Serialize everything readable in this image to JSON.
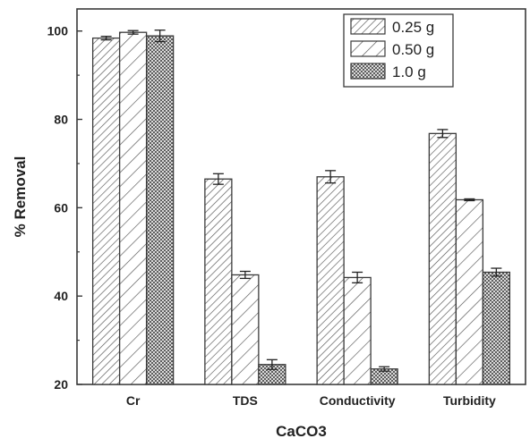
{
  "chart_data": {
    "type": "bar",
    "xlabel": "CaCO3",
    "ylabel": "% Removal",
    "ylim": [
      20,
      105
    ],
    "yticks": [
      20,
      40,
      60,
      80,
      100
    ],
    "categories": [
      "Cr",
      "TDS",
      "Conductivity",
      "Turbidity"
    ],
    "series": [
      {
        "name": "0.25 g",
        "pattern": "hatch-diagonal-dense",
        "values": [
          98.4,
          66.5,
          67.0,
          76.8
        ],
        "errors": [
          0.4,
          1.2,
          1.4,
          0.9
        ]
      },
      {
        "name": "0.50 g",
        "pattern": "hatch-diagonal-wide",
        "values": [
          99.7,
          44.8,
          44.2,
          61.8
        ],
        "errors": [
          0.4,
          0.8,
          1.2,
          0.2
        ]
      },
      {
        "name": "1.0 g",
        "pattern": "crosshatch",
        "values": [
          98.9,
          24.5,
          23.5,
          45.4
        ],
        "errors": [
          1.3,
          1.1,
          0.5,
          0.9
        ]
      }
    ],
    "legend_position": "top-right",
    "grid": false,
    "colors": {
      "bar_fill": "#ffffff",
      "stroke": "#3a3a3a",
      "text": "#222222"
    }
  }
}
